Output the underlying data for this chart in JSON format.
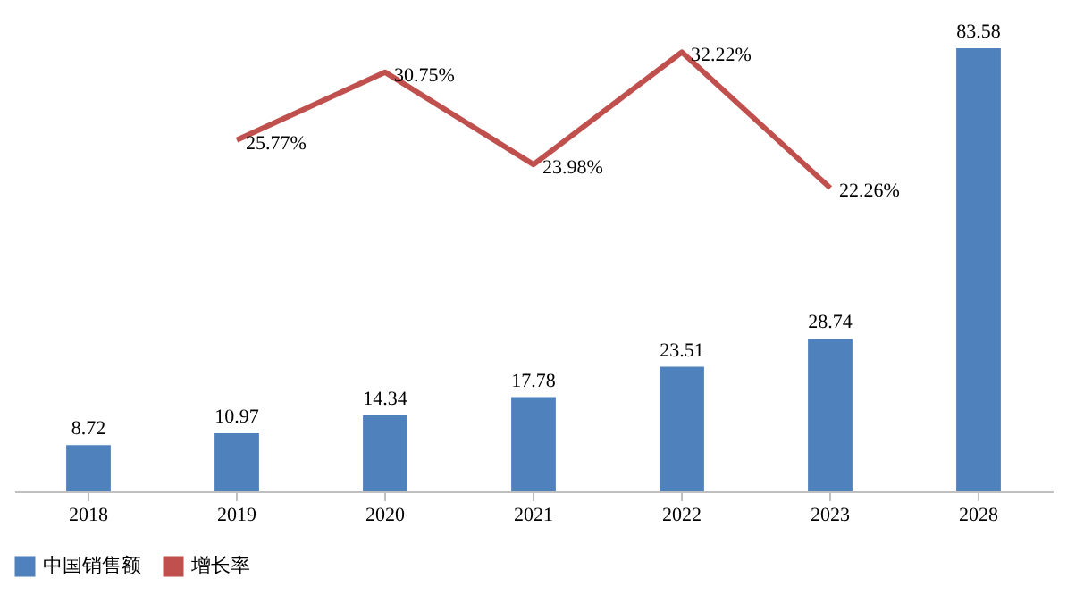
{
  "chart_data": {
    "type": "bar",
    "categories": [
      "2018",
      "2019",
      "2020",
      "2021",
      "2022",
      "2023",
      "2028"
    ],
    "series": [
      {
        "name": "中国销售额",
        "color": "#4f81bd",
        "values": [
          8.72,
          10.97,
          14.34,
          17.78,
          23.51,
          28.74,
          83.58
        ]
      },
      {
        "name": "增长率",
        "type": "line",
        "axis": "y2",
        "color": "#c0504d",
        "values": [
          null,
          25.77,
          30.75,
          23.98,
          32.22,
          22.26,
          null
        ],
        "value_labels": [
          null,
          "25.77%",
          "30.75%",
          "23.98%",
          "32.22%",
          "22.26%",
          null
        ]
      }
    ],
    "data_labels": true,
    "tick_labels": "x",
    "grid": false,
    "legend": "bottom",
    "marker": "none",
    "line_style": "solid"
  }
}
